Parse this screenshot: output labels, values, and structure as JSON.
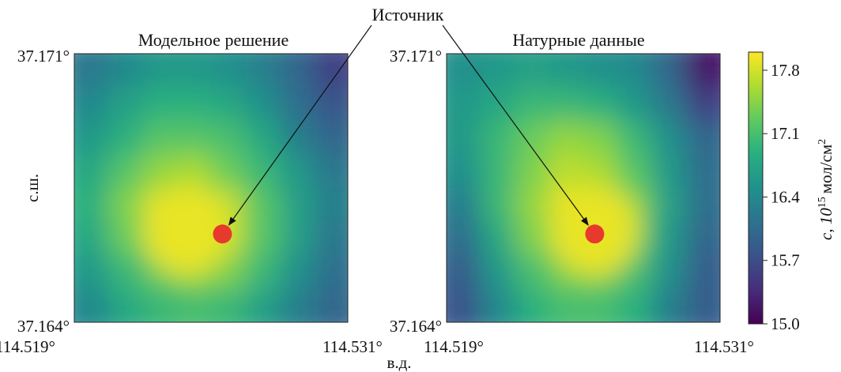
{
  "chart_data": {
    "type": "heatmap",
    "annotation": "Источник",
    "xlabel": "в.д.",
    "ylabel": "с.ш.",
    "x_ticks": [
      "114.519°",
      "114.531°"
    ],
    "y_ticks": [
      "37.171°",
      "37.164°"
    ],
    "xlim": [
      114.519,
      114.531
    ],
    "ylim": [
      37.164,
      37.171
    ],
    "colorbar": {
      "label_prefix": "c, 10",
      "label_exponent": "15",
      "label_unit": "мол/см",
      "label_unit_exponent": "2",
      "ticks": [
        "17.8",
        "17.1",
        "16.4",
        "15.7",
        "15.0"
      ],
      "tick_values": [
        17.8,
        17.1,
        16.4,
        15.7,
        15.0
      ],
      "range": [
        15.0,
        18.0
      ],
      "colormap": "viridis"
    },
    "source": {
      "lon": 114.5255,
      "lat": 37.1663,
      "color": "#e8392d"
    },
    "panels": [
      {
        "title": "Модельное решение",
        "peak": {
          "lon": 114.5239,
          "lat": 37.1664,
          "value": 17.9
        },
        "values_grid": [
          [
            16.2,
            16.4,
            16.6,
            16.6,
            16.5,
            16.3,
            16.0,
            15.6
          ],
          [
            16.4,
            16.7,
            16.9,
            16.9,
            16.8,
            16.5,
            16.1,
            15.8
          ],
          [
            16.6,
            16.9,
            17.2,
            17.2,
            17.1,
            16.8,
            16.3,
            16.0
          ],
          [
            16.8,
            17.2,
            17.5,
            17.6,
            17.3,
            17.0,
            16.6,
            16.2
          ],
          [
            16.9,
            17.4,
            17.8,
            17.9,
            17.7,
            17.2,
            16.7,
            16.3
          ],
          [
            16.8,
            17.3,
            17.6,
            17.8,
            17.7,
            17.2,
            16.7,
            16.2
          ],
          [
            16.6,
            17.0,
            17.3,
            17.5,
            17.4,
            17.0,
            16.5,
            16.1
          ],
          [
            16.4,
            16.8,
            17.0,
            17.1,
            17.0,
            16.7,
            16.3,
            16.0
          ]
        ]
      },
      {
        "title": "Натурные данные",
        "peak": {
          "lon": 114.5255,
          "lat": 37.1664,
          "value": 17.9
        },
        "values_grid": [
          [
            16.5,
            16.6,
            16.7,
            16.6,
            16.5,
            16.4,
            16.0,
            15.2
          ],
          [
            16.6,
            16.8,
            17.0,
            17.0,
            16.9,
            16.6,
            16.2,
            15.6
          ],
          [
            16.6,
            17.0,
            17.3,
            17.5,
            17.4,
            17.0,
            16.5,
            16.0
          ],
          [
            16.5,
            17.0,
            17.4,
            17.7,
            17.6,
            17.2,
            16.6,
            16.1
          ],
          [
            16.3,
            17.0,
            17.5,
            17.9,
            17.8,
            17.4,
            16.7,
            16.1
          ],
          [
            16.1,
            16.8,
            17.4,
            17.8,
            17.7,
            17.3,
            16.6,
            16.0
          ],
          [
            15.9,
            16.6,
            17.1,
            17.4,
            17.4,
            17.1,
            16.5,
            15.9
          ],
          [
            15.8,
            16.4,
            16.9,
            17.1,
            17.1,
            16.9,
            16.3,
            15.9
          ]
        ]
      }
    ]
  }
}
